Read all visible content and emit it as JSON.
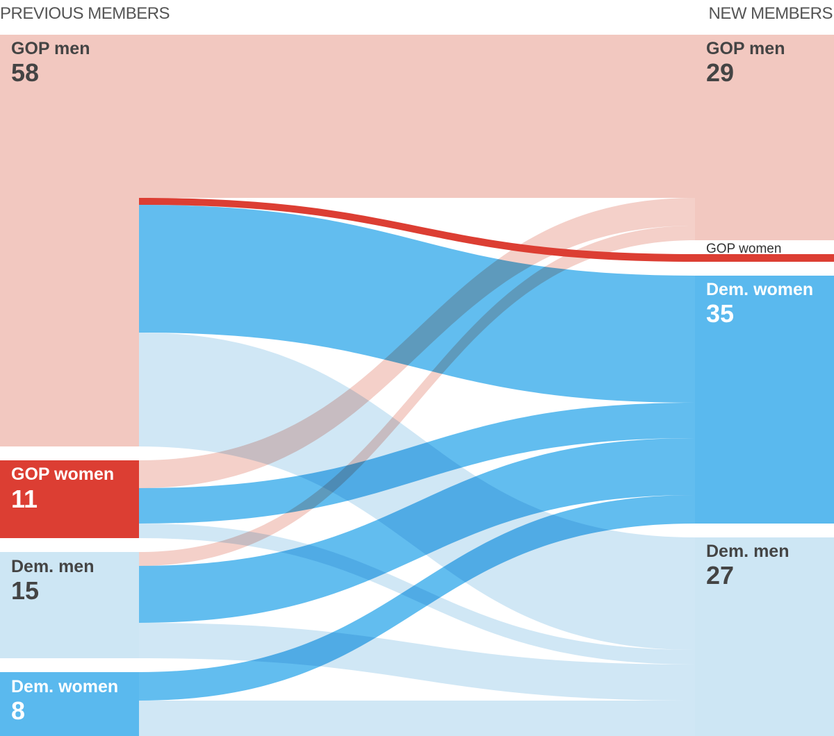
{
  "chart_data": {
    "type": "sankey",
    "left_header": "PREVIOUS MEMBERS",
    "right_header": "NEW MEMBERS",
    "colors": {
      "gop_men": "#f2c8c0",
      "gop_women": "#dc3e33",
      "dem_men": "#cde6f4",
      "dem_women": "#5ab9ee"
    },
    "left_nodes": [
      {
        "key": "gop_men",
        "name": "GOP men",
        "value": "58"
      },
      {
        "key": "gop_women",
        "name": "GOP women",
        "value": "11"
      },
      {
        "key": "dem_men",
        "name": "Dem. men",
        "value": "15"
      },
      {
        "key": "dem_women",
        "name": "Dem. women",
        "value": "8"
      }
    ],
    "right_nodes": [
      {
        "key": "gop_men",
        "name": "GOP men",
        "value": "29"
      },
      {
        "key": "gop_women",
        "name": "GOP women",
        "value": ""
      },
      {
        "key": "dem_women",
        "name": "Dem. women",
        "value": "35"
      },
      {
        "key": "dem_men",
        "name": "Dem. men",
        "value": "27"
      }
    ],
    "flows": [
      {
        "from": "gop_men",
        "to": "gop_men",
        "color": "gop_men"
      },
      {
        "from": "gop_men",
        "to": "gop_women",
        "color": "gop_women"
      },
      {
        "from": "gop_men",
        "to": "dem_women",
        "color": "dem_women"
      },
      {
        "from": "gop_men",
        "to": "dem_men",
        "color": "dem_men"
      },
      {
        "from": "gop_women",
        "to": "gop_men",
        "color": "gop_men"
      },
      {
        "from": "gop_women",
        "to": "dem_women",
        "color": "dem_women"
      },
      {
        "from": "gop_women",
        "to": "dem_men",
        "color": "dem_men"
      },
      {
        "from": "dem_men",
        "to": "gop_men",
        "color": "gop_men"
      },
      {
        "from": "dem_men",
        "to": "dem_women",
        "color": "dem_women"
      },
      {
        "from": "dem_men",
        "to": "dem_men",
        "color": "dem_men"
      },
      {
        "from": "dem_women",
        "to": "dem_women",
        "color": "dem_women"
      },
      {
        "from": "dem_women",
        "to": "dem_men",
        "color": "dem_men"
      }
    ]
  }
}
